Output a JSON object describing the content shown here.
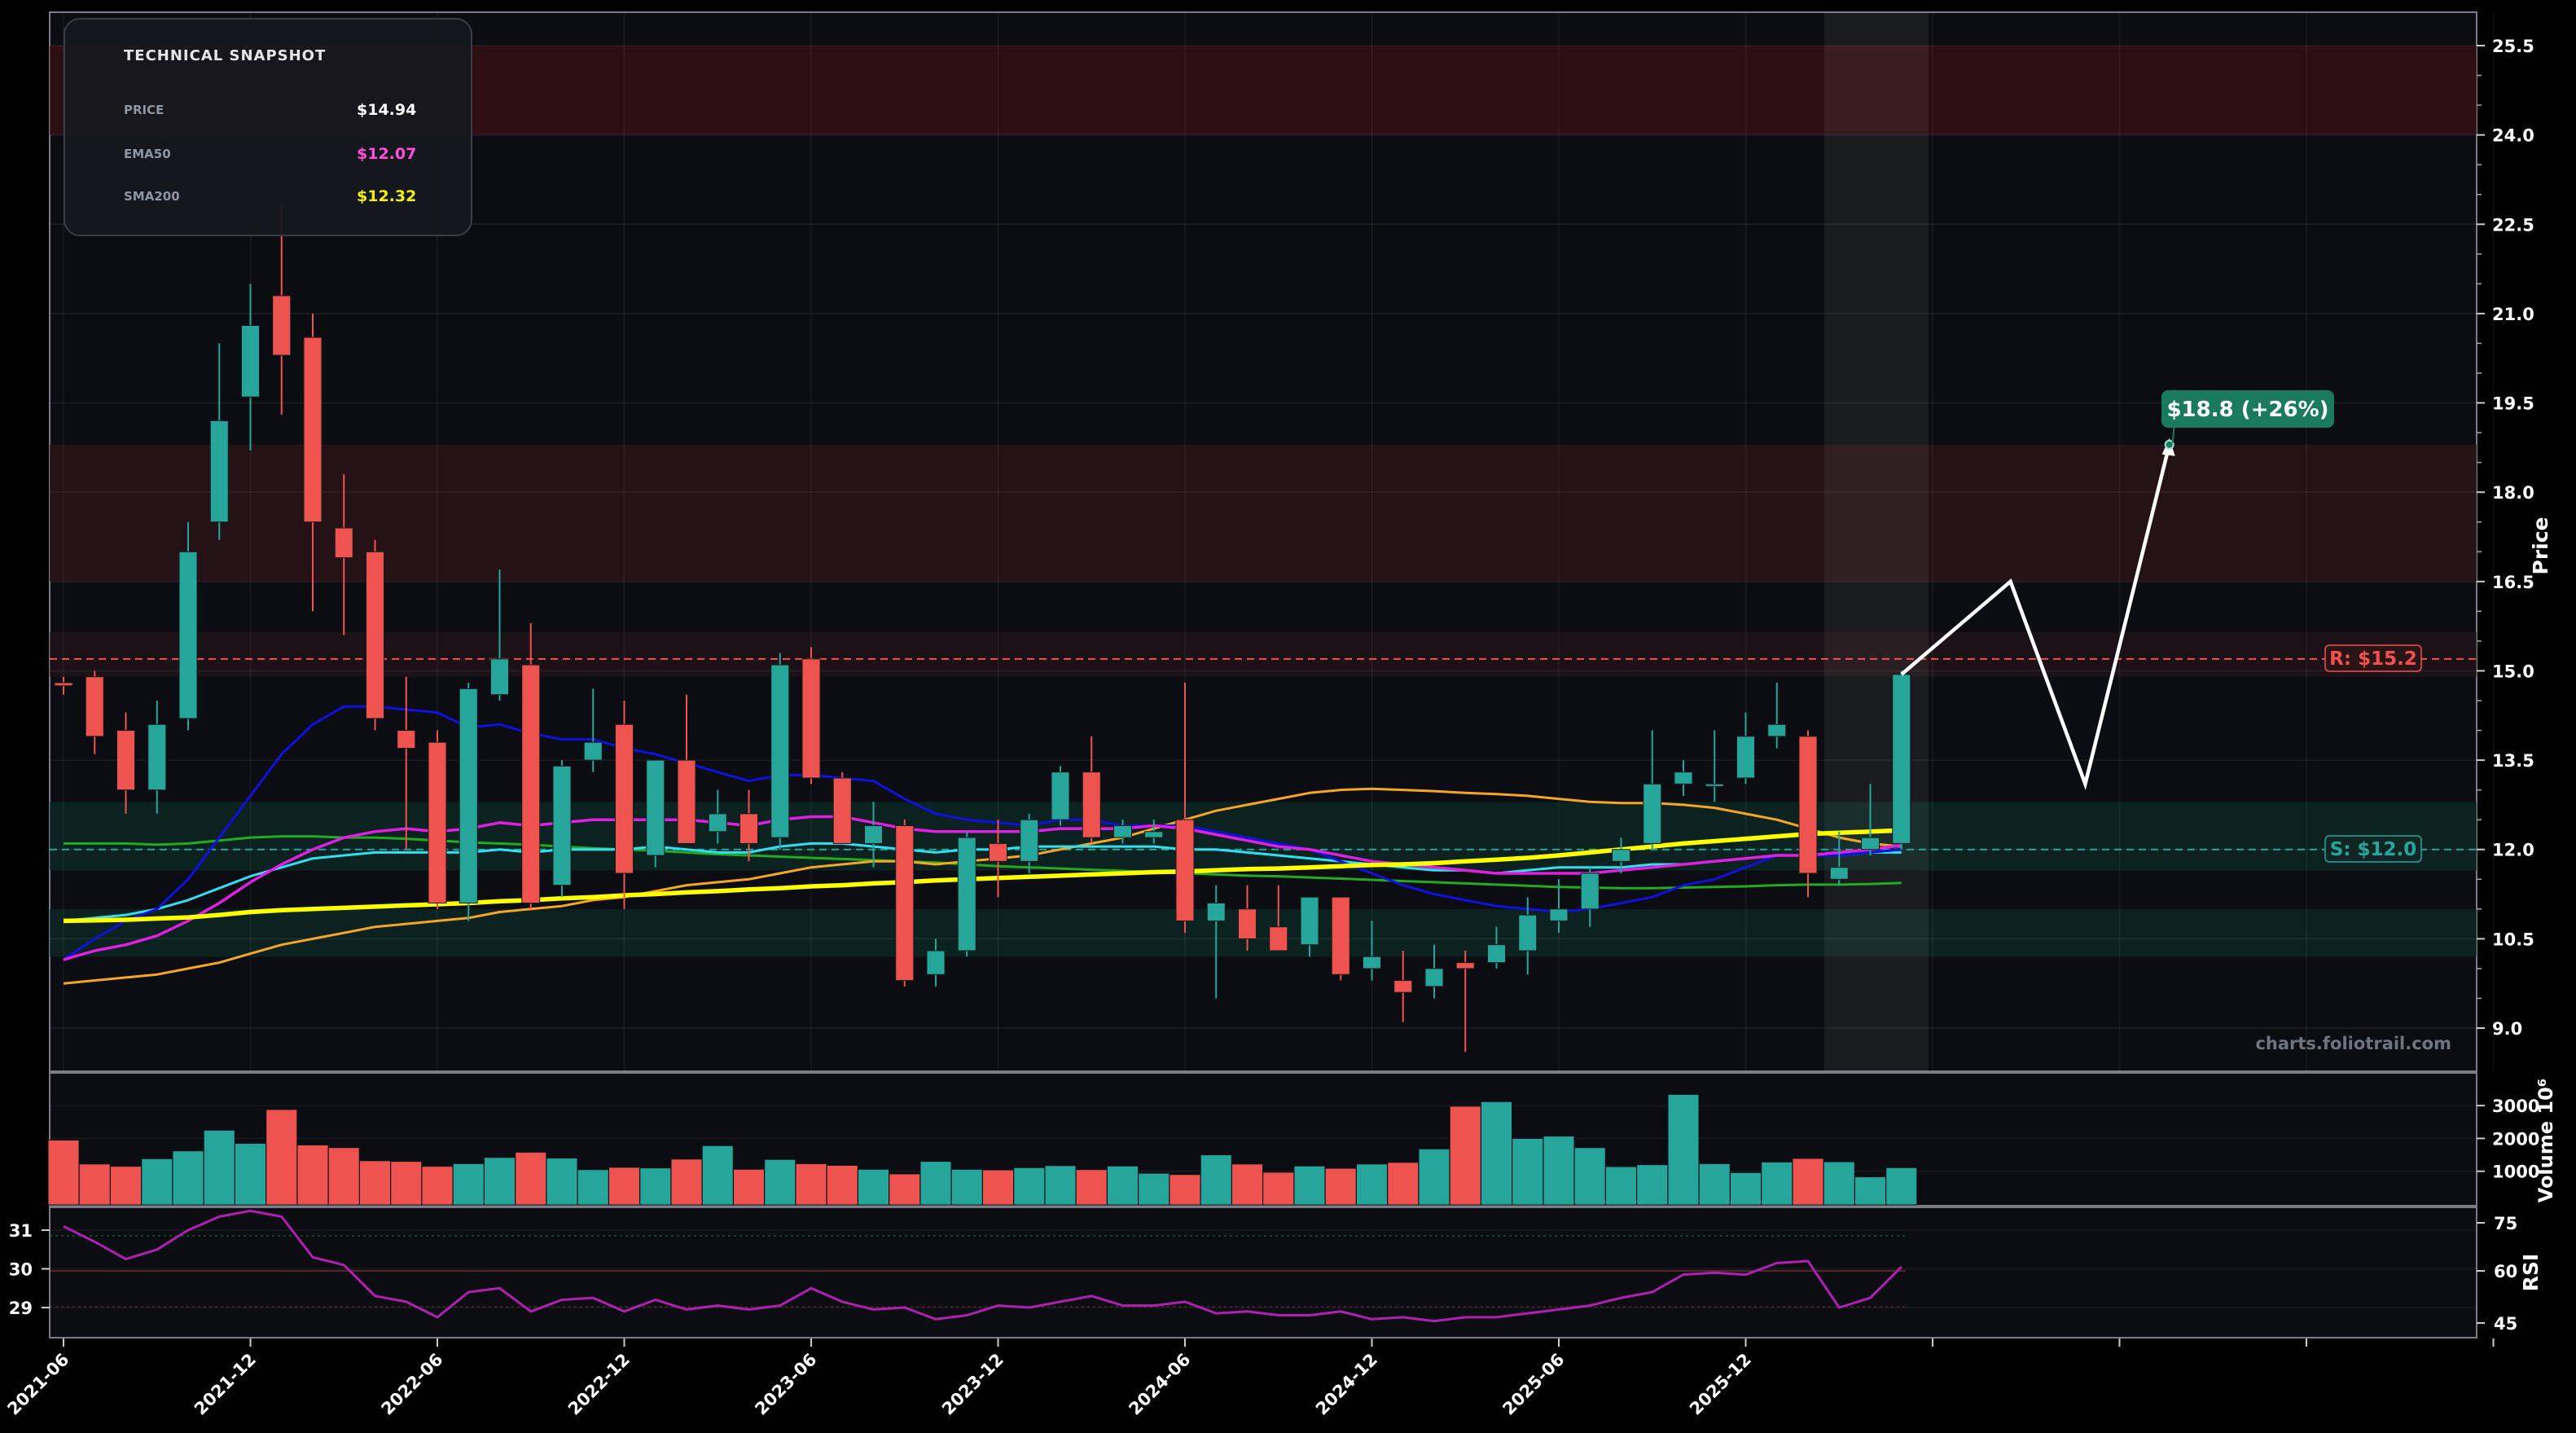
{
  "snapshot": {
    "title": "TECHNICAL SNAPSHOT",
    "rows": [
      {
        "label": "PRICE",
        "value": "$14.94",
        "color": "#ffffff"
      },
      {
        "label": "EMA50",
        "value": "$12.07",
        "color": "#ff4fd8"
      },
      {
        "label": "SMA200",
        "value": "$12.32",
        "color": "#f2f200"
      }
    ]
  },
  "watermark": "charts.foliotrail.com",
  "resistance_label": "R: $15.2",
  "support_label": "S: $12.0",
  "target_label": "$18.8 (+26%)",
  "colors": {
    "up": "#26a69a",
    "down": "#ef5350",
    "ema_blue": "#1010e0",
    "ema_magenta": "#e020e0",
    "ema_cyan": "#30e0f0",
    "ema_orange": "#f5a623",
    "sma_yellow": "#ffff00",
    "sma_green": "#22aa22",
    "rsi_line": "#b020b0",
    "resistance": "#ef5350",
    "support": "#26a69a",
    "target_badge": "#1a7a5e",
    "projection": "#ffffff"
  },
  "chart_data": [
    {
      "type": "candlestick",
      "ylabel": "Price",
      "ylim": [
        8.5,
        25.8
      ],
      "yticks": [
        9.0,
        10.5,
        12.0,
        13.5,
        15.0,
        16.5,
        18.0,
        19.5,
        21.0,
        22.5,
        24.0,
        25.5
      ],
      "xticks": [
        "2021-06",
        "2021-12",
        "2022-06",
        "2022-12",
        "2023-06",
        "2023-12",
        "2024-06",
        "2024-12",
        "2025-06",
        "2025-12"
      ],
      "ohlc": [
        [
          14.8,
          14.9,
          14.6,
          14.75
        ],
        [
          14.9,
          15.0,
          13.6,
          13.9
        ],
        [
          14.0,
          14.3,
          12.6,
          13.0
        ],
        [
          13.0,
          14.5,
          12.6,
          14.1
        ],
        [
          14.2,
          17.5,
          14.0,
          17.0
        ],
        [
          17.5,
          20.5,
          17.2,
          19.2
        ],
        [
          19.6,
          21.5,
          18.7,
          20.8
        ],
        [
          21.3,
          22.8,
          19.3,
          20.3
        ],
        [
          20.6,
          21.0,
          16.0,
          17.5
        ],
        [
          17.4,
          18.3,
          15.6,
          16.9
        ],
        [
          17.0,
          17.2,
          14.0,
          14.2
        ],
        [
          14.0,
          14.9,
          12.0,
          13.7
        ],
        [
          13.8,
          14.0,
          11.0,
          11.1
        ],
        [
          11.1,
          14.8,
          10.8,
          14.7
        ],
        [
          14.6,
          16.7,
          14.5,
          15.2
        ],
        [
          15.1,
          15.8,
          11.0,
          11.1
        ],
        [
          11.4,
          13.5,
          11.2,
          13.4
        ],
        [
          13.5,
          14.7,
          13.3,
          13.8
        ],
        [
          14.1,
          14.5,
          11.0,
          11.6
        ],
        [
          11.9,
          13.5,
          11.7,
          13.5
        ],
        [
          13.5,
          14.6,
          12.1,
          12.1
        ],
        [
          12.3,
          13.0,
          12.1,
          12.6
        ],
        [
          12.6,
          13.0,
          11.8,
          12.1
        ],
        [
          12.2,
          15.3,
          12.0,
          15.1
        ],
        [
          15.2,
          15.4,
          13.1,
          13.2
        ],
        [
          13.2,
          13.3,
          12.1,
          12.1
        ],
        [
          12.1,
          12.8,
          11.7,
          12.4
        ],
        [
          12.4,
          12.5,
          9.7,
          9.8
        ],
        [
          9.9,
          10.5,
          9.7,
          10.3
        ],
        [
          10.3,
          12.3,
          10.2,
          12.2
        ],
        [
          12.1,
          12.5,
          11.2,
          11.8
        ],
        [
          11.8,
          12.6,
          11.6,
          12.5
        ],
        [
          12.5,
          13.4,
          12.4,
          13.3
        ],
        [
          13.3,
          13.9,
          12.1,
          12.2
        ],
        [
          12.2,
          12.5,
          12.1,
          12.4
        ],
        [
          12.2,
          12.5,
          12.1,
          12.3
        ],
        [
          12.5,
          14.8,
          10.6,
          10.8
        ],
        [
          10.8,
          11.4,
          9.5,
          11.1
        ],
        [
          11.0,
          11.4,
          10.3,
          10.5
        ],
        [
          10.7,
          11.4,
          10.3,
          10.3
        ],
        [
          10.4,
          11.2,
          10.2,
          11.2
        ],
        [
          11.2,
          11.2,
          9.8,
          9.9
        ],
        [
          10.0,
          10.8,
          9.8,
          10.2
        ],
        [
          9.8,
          10.3,
          9.1,
          9.6
        ],
        [
          9.7,
          10.4,
          9.5,
          10.0
        ],
        [
          10.1,
          10.3,
          8.6,
          10.0
        ],
        [
          10.1,
          10.7,
          10.0,
          10.4
        ],
        [
          10.3,
          11.2,
          9.9,
          10.9
        ],
        [
          10.8,
          11.5,
          10.6,
          11.0
        ],
        [
          11.0,
          11.7,
          10.7,
          11.6
        ],
        [
          11.8,
          12.2,
          11.6,
          12.0
        ],
        [
          12.1,
          14.0,
          12.0,
          13.1
        ],
        [
          13.1,
          13.5,
          12.9,
          13.3
        ],
        [
          13.1,
          14.0,
          12.8,
          13.1
        ],
        [
          13.2,
          14.3,
          13.1,
          13.9
        ],
        [
          13.9,
          14.8,
          13.7,
          14.1
        ],
        [
          13.9,
          14.0,
          11.2,
          11.6
        ],
        [
          11.5,
          12.3,
          11.4,
          11.7
        ],
        [
          12.0,
          13.1,
          11.9,
          12.2
        ],
        [
          12.1,
          15.0,
          12.0,
          14.94
        ]
      ],
      "ema_blue": [
        10.15,
        10.5,
        10.8,
        11.0,
        11.5,
        12.2,
        12.9,
        13.6,
        14.1,
        14.4,
        14.4,
        14.35,
        14.3,
        14.05,
        14.1,
        13.95,
        13.85,
        13.85,
        13.7,
        13.6,
        13.45,
        13.3,
        13.15,
        13.25,
        13.25,
        13.2,
        13.15,
        12.85,
        12.6,
        12.5,
        12.45,
        12.4,
        12.5,
        12.5,
        12.4,
        12.4,
        12.4,
        12.3,
        12.2,
        12.1,
        12.0,
        11.8,
        11.6,
        11.4,
        11.25,
        11.15,
        11.05,
        11.0,
        10.95,
        11.0,
        11.1,
        11.2,
        11.4,
        11.5,
        11.7,
        11.9,
        11.9,
        11.9,
        11.95,
        12.0
      ],
      "ema_magenta": [
        10.15,
        10.3,
        10.4,
        10.55,
        10.8,
        11.1,
        11.45,
        11.75,
        12.0,
        12.2,
        12.3,
        12.35,
        12.3,
        12.35,
        12.45,
        12.4,
        12.45,
        12.5,
        12.5,
        12.5,
        12.5,
        12.45,
        12.4,
        12.5,
        12.55,
        12.55,
        12.45,
        12.35,
        12.3,
        12.3,
        12.3,
        12.3,
        12.35,
        12.35,
        12.35,
        12.4,
        12.35,
        12.25,
        12.15,
        12.05,
        12.0,
        11.9,
        11.8,
        11.75,
        11.7,
        11.65,
        11.6,
        11.6,
        11.6,
        11.6,
        11.65,
        11.7,
        11.75,
        11.8,
        11.85,
        11.9,
        11.9,
        11.95,
        12.0,
        12.07
      ],
      "ema_cyan": [
        10.8,
        10.85,
        10.9,
        11.0,
        11.15,
        11.35,
        11.55,
        11.7,
        11.85,
        11.9,
        11.95,
        11.95,
        11.95,
        11.95,
        12.0,
        11.95,
        12.0,
        12.0,
        12.0,
        12.05,
        12.0,
        11.95,
        11.95,
        12.05,
        12.1,
        12.1,
        12.05,
        12.0,
        11.95,
        12.0,
        12.0,
        12.05,
        12.05,
        12.05,
        12.05,
        12.05,
        12.0,
        12.0,
        11.95,
        11.9,
        11.85,
        11.8,
        11.75,
        11.7,
        11.65,
        11.65,
        11.6,
        11.65,
        11.7,
        11.7,
        11.7,
        11.75,
        11.75,
        11.8,
        11.85,
        11.9,
        11.9,
        11.9,
        11.95,
        11.95
      ],
      "ema_orange": [
        9.75,
        9.8,
        9.85,
        9.9,
        10.0,
        10.1,
        10.25,
        10.4,
        10.5,
        10.6,
        10.7,
        10.75,
        10.8,
        10.85,
        10.95,
        11.0,
        11.05,
        11.15,
        11.2,
        11.3,
        11.4,
        11.45,
        11.5,
        11.6,
        11.7,
        11.75,
        11.8,
        11.8,
        11.75,
        11.8,
        11.85,
        11.9,
        12.0,
        12.1,
        12.2,
        12.35,
        12.5,
        12.65,
        12.75,
        12.85,
        12.95,
        13.0,
        13.02,
        13.0,
        12.98,
        12.95,
        12.93,
        12.9,
        12.85,
        12.8,
        12.78,
        12.78,
        12.75,
        12.7,
        12.6,
        12.5,
        12.35,
        12.2,
        12.1,
        12.05
      ],
      "sma_yellow": [
        10.8,
        10.81,
        10.82,
        10.84,
        10.86,
        10.9,
        10.95,
        10.98,
        11.0,
        11.02,
        11.04,
        11.06,
        11.08,
        11.1,
        11.13,
        11.15,
        11.18,
        11.2,
        11.23,
        11.25,
        11.28,
        11.3,
        11.33,
        11.35,
        11.38,
        11.4,
        11.43,
        11.45,
        11.48,
        11.5,
        11.52,
        11.54,
        11.56,
        11.58,
        11.6,
        11.62,
        11.63,
        11.65,
        11.67,
        11.68,
        11.7,
        11.72,
        11.74,
        11.75,
        11.77,
        11.8,
        11.83,
        11.86,
        11.9,
        11.95,
        12.0,
        12.05,
        12.1,
        12.14,
        12.18,
        12.22,
        12.26,
        12.28,
        12.3,
        12.32
      ],
      "sma_green": [
        12.1,
        12.1,
        12.1,
        12.08,
        12.1,
        12.15,
        12.2,
        12.22,
        12.22,
        12.2,
        12.2,
        12.18,
        12.15,
        12.12,
        12.1,
        12.08,
        12.05,
        12.02,
        12.0,
        11.98,
        11.95,
        11.92,
        11.9,
        11.88,
        11.86,
        11.84,
        11.82,
        11.8,
        11.78,
        11.75,
        11.72,
        11.7,
        11.68,
        11.66,
        11.64,
        11.62,
        11.6,
        11.58,
        11.56,
        11.55,
        11.53,
        11.51,
        11.49,
        11.47,
        11.45,
        11.43,
        11.41,
        11.39,
        11.37,
        11.36,
        11.35,
        11.35,
        11.36,
        11.37,
        11.38,
        11.4,
        11.41,
        11.41,
        11.42,
        11.44
      ],
      "resistance": 15.2,
      "support": 12.0,
      "resistance_zone": [
        14.9,
        15.65
      ],
      "supply_zones": [
        [
          24.0,
          25.5
        ],
        [
          16.5,
          18.8
        ]
      ],
      "demand_zones": [
        [
          11.65,
          12.8
        ],
        [
          10.2,
          11.0
        ]
      ],
      "projection": [
        [
          59,
          14.94
        ],
        [
          62.5,
          16.5
        ],
        [
          64.9,
          13.1
        ],
        [
          67.6,
          18.8
        ]
      ],
      "target": 18.8
    },
    {
      "type": "bar",
      "ylabel": "Volume  10^6",
      "yticks": [
        1000,
        2000,
        3000
      ],
      "values": [
        1950,
        1220,
        1150,
        1380,
        1620,
        2250,
        1850,
        2880,
        1800,
        1720,
        1320,
        1300,
        1150,
        1230,
        1420,
        1580,
        1400,
        1050,
        1120,
        1100,
        1370,
        1780,
        1060,
        1360,
        1230,
        1180,
        1060,
        920,
        1300,
        1060,
        1040,
        1110,
        1170,
        1050,
        1160,
        940,
        900,
        1500,
        1220,
        970,
        1160,
        1090,
        1220,
        1270,
        1680,
        2980,
        3120,
        2000,
        2070,
        1720,
        1140,
        1200,
        3340,
        1230,
        960,
        1280,
        1390,
        1290,
        830,
        1110
      ]
    },
    {
      "type": "line",
      "ylabel": "RSI",
      "yticks_left": [
        29,
        30,
        31
      ],
      "yticks_right": [
        45,
        60,
        75
      ],
      "values": [
        31.1,
        30.7,
        30.25,
        30.5,
        31.0,
        31.35,
        31.5,
        31.35,
        30.3,
        30.1,
        29.3,
        29.15,
        28.75,
        29.4,
        29.5,
        28.9,
        29.2,
        29.25,
        28.9,
        29.2,
        28.95,
        29.05,
        28.95,
        29.05,
        29.5,
        29.15,
        28.95,
        29.0,
        28.7,
        28.8,
        29.05,
        29.0,
        29.15,
        29.3,
        29.05,
        29.05,
        29.15,
        28.85,
        28.9,
        28.8,
        28.8,
        28.9,
        28.7,
        28.75,
        28.65,
        28.75,
        28.75,
        28.85,
        28.95,
        29.05,
        29.25,
        29.4,
        29.85,
        29.9,
        29.85,
        30.15,
        30.2,
        29.0,
        29.25,
        30.05
      ],
      "ref_lines": [
        70,
        60,
        30
      ]
    }
  ]
}
